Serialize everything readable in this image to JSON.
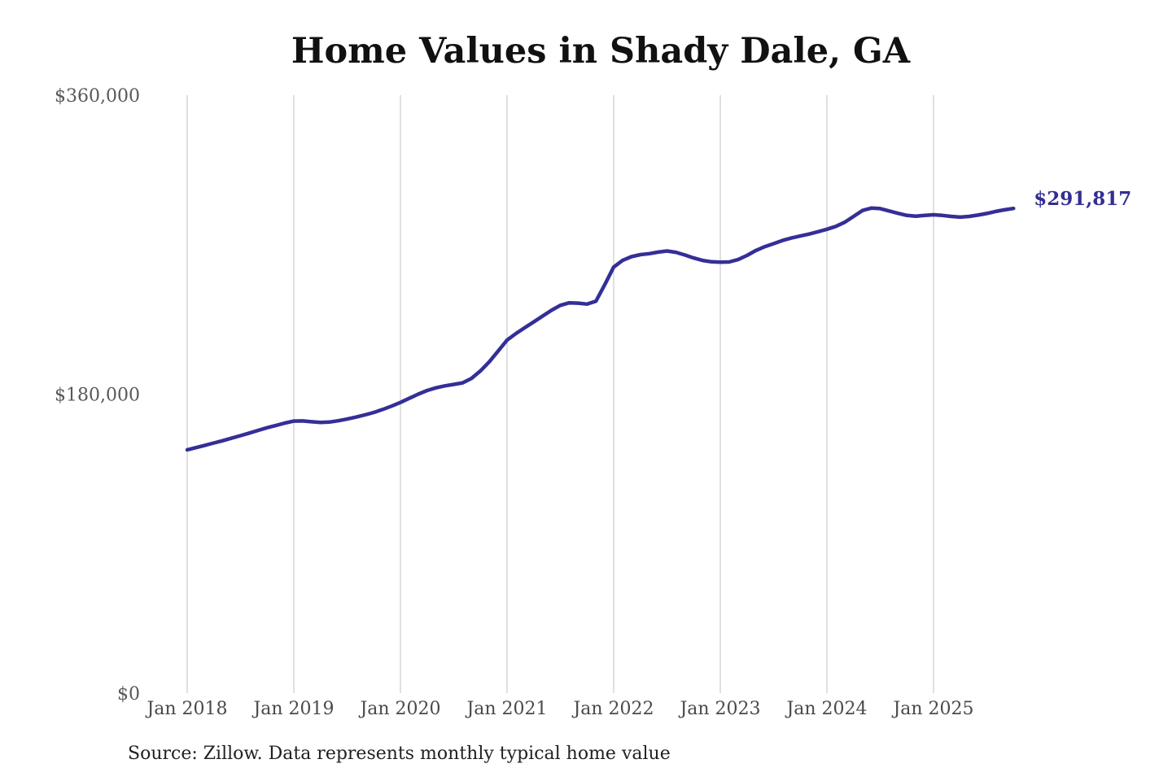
{
  "chart_data": {
    "type": "line",
    "title": "Home Values in Shady Dale, GA",
    "source_note": "Source: Zillow. Data represents monthly typical home value",
    "series_name": "Typical home value (USD)",
    "frequency": "monthly",
    "start": "Jan 2018",
    "end": "Oct 2025",
    "end_label": "$291,817",
    "end_value": 291817,
    "x_tick_labels": [
      "Jan 2018",
      "Jan 2019",
      "Jan 2020",
      "Jan 2021",
      "Jan 2022",
      "Jan 2023",
      "Jan 2024",
      "Jan 2025"
    ],
    "y_ticks": [
      {
        "label": "$360,000",
        "value": 360000
      },
      {
        "label": "$180,000",
        "value": 180000
      },
      {
        "label": "$0",
        "value": 0
      }
    ],
    "ylim": [
      0,
      360000
    ],
    "grid": "vertical-only",
    "legend": "none",
    "values": [
      146500,
      147800,
      149200,
      150600,
      152000,
      153500,
      155000,
      156600,
      158200,
      159800,
      161200,
      162600,
      163800,
      163900,
      163400,
      163000,
      163200,
      164000,
      165000,
      166200,
      167500,
      169000,
      170800,
      172800,
      175000,
      177500,
      180000,
      182200,
      183800,
      185000,
      185900,
      186800,
      189500,
      194000,
      199500,
      206000,
      212500,
      216500,
      220000,
      223500,
      227000,
      230500,
      233500,
      235000,
      234800,
      234200,
      236000,
      246000,
      256500,
      260500,
      262800,
      264000,
      264600,
      265500,
      266200,
      265400,
      263800,
      262000,
      260500,
      259700,
      259500,
      259600,
      261000,
      263500,
      266500,
      268800,
      270600,
      272500,
      274000,
      275200,
      276400,
      277800,
      279300,
      281000,
      283500,
      287000,
      290600,
      292000,
      291700,
      290300,
      288900,
      287600,
      287100,
      287600,
      288000,
      287600,
      287000,
      286600,
      287000,
      287800,
      288800,
      290000,
      291000,
      291817
    ],
    "colors": {
      "line": "#342f97",
      "end_label": "#332e92",
      "grid": "#cccccc",
      "title": "#111111",
      "x_tick": "#4a4a4a",
      "y_tick": "#585858",
      "source": "#212121",
      "background": "#ffffff"
    }
  }
}
